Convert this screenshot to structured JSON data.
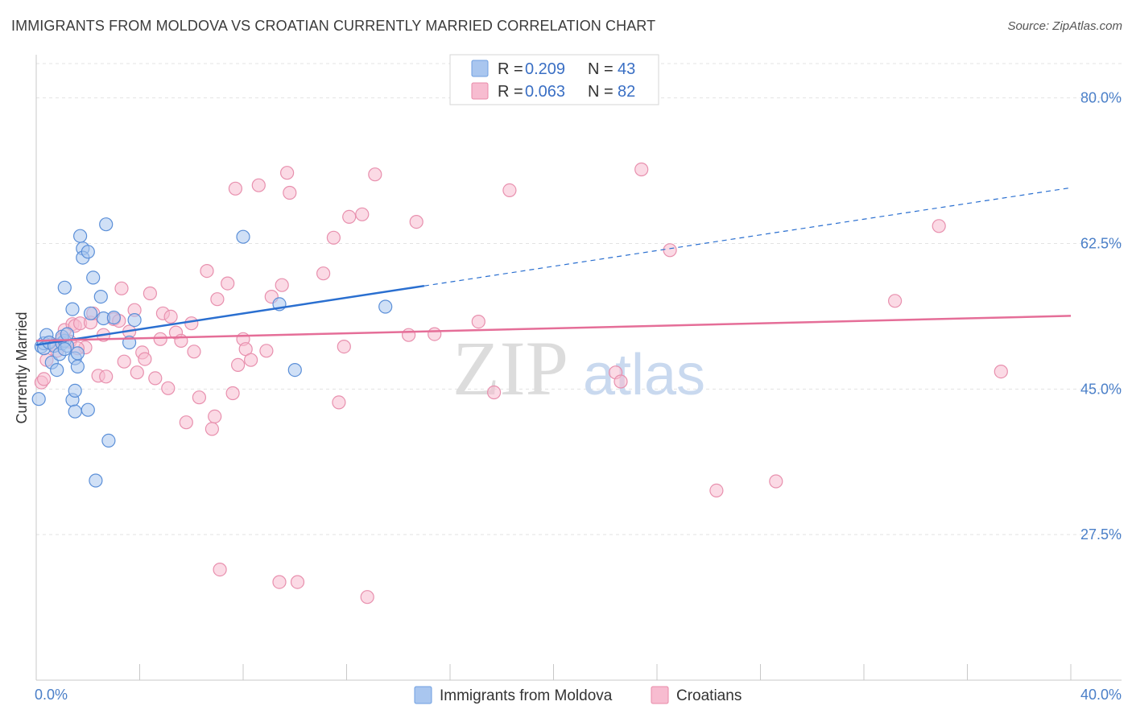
{
  "title": "IMMIGRANTS FROM MOLDOVA VS CROATIAN CURRENTLY MARRIED CORRELATION CHART",
  "source": "Source: ZipAtlas.com",
  "watermark": {
    "zip": "ZIP",
    "atlas": "atlas"
  },
  "legend": {
    "rows": [
      {
        "r_label": "R = ",
        "r_value": "0.209",
        "n_label": "N = ",
        "n_value": "43",
        "color": "#a9c6ef",
        "stroke": "#6f9fe0"
      },
      {
        "r_label": "R = ",
        "r_value": "0.063",
        "n_label": "N = ",
        "n_value": "82",
        "color": "#f7bcd0",
        "stroke": "#e88aa8"
      }
    ]
  },
  "chart_data": {
    "type": "scatter",
    "title": "IMMIGRANTS FROM MOLDOVA VS CROATIAN CURRENTLY MARRIED CORRELATION CHART",
    "xlabel": "",
    "ylabel": "Currently Married",
    "xlim": [
      0,
      40
    ],
    "ylim": [
      10,
      85
    ],
    "x_tick_labels": [
      "0.0%",
      "40.0%"
    ],
    "y_ticks": [
      27.5,
      45.0,
      62.5,
      80.0
    ],
    "y_tick_labels": [
      "27.5%",
      "45.0%",
      "62.5%",
      "80.0%"
    ],
    "grid": true,
    "legend_position": "top-center",
    "series": [
      {
        "name": "Immigrants from Moldova",
        "color": "#a9c6ef",
        "stroke": "#5b8fd8",
        "trend_color": "#2a6fd0",
        "trend": {
          "x0": 0,
          "y0": 50.3,
          "x1": 15.0,
          "y1": 57.4,
          "dash_to_x": 40,
          "dash_to_y": 69.2
        },
        "points": [
          [
            0.1,
            43.8
          ],
          [
            0.2,
            50.1
          ],
          [
            0.3,
            50.5
          ],
          [
            0.3,
            49.9
          ],
          [
            0.4,
            51.5
          ],
          [
            0.5,
            50.6
          ],
          [
            0.6,
            48.2
          ],
          [
            0.7,
            50.2
          ],
          [
            0.8,
            47.3
          ],
          [
            0.9,
            49.2
          ],
          [
            1.0,
            50.5
          ],
          [
            1.1,
            50.8
          ],
          [
            1.2,
            50.2
          ],
          [
            1.0,
            51.3
          ],
          [
            1.1,
            49.8
          ],
          [
            1.2,
            51.6
          ],
          [
            1.1,
            57.2
          ],
          [
            1.4,
            43.7
          ],
          [
            1.4,
            54.6
          ],
          [
            1.5,
            42.3
          ],
          [
            1.5,
            48.7
          ],
          [
            1.6,
            49.3
          ],
          [
            1.6,
            47.7
          ],
          [
            1.7,
            63.4
          ],
          [
            1.8,
            61.9
          ],
          [
            1.8,
            60.8
          ],
          [
            2.0,
            42.5
          ],
          [
            2.0,
            61.5
          ],
          [
            2.1,
            54.1
          ],
          [
            2.2,
            58.4
          ],
          [
            2.3,
            34.0
          ],
          [
            2.5,
            56.1
          ],
          [
            2.6,
            53.5
          ],
          [
            2.7,
            64.8
          ],
          [
            2.8,
            38.8
          ],
          [
            3.0,
            53.6
          ],
          [
            3.6,
            50.6
          ],
          [
            3.8,
            53.3
          ],
          [
            8.0,
            63.3
          ],
          [
            9.4,
            55.2
          ],
          [
            10.0,
            47.3
          ],
          [
            13.5,
            54.9
          ],
          [
            1.5,
            44.8
          ]
        ]
      },
      {
        "name": "Croatians",
        "color": "#f7bcd0",
        "stroke": "#e890ae",
        "trend_color": "#e56e98",
        "trend": {
          "x0": 0,
          "y0": 50.8,
          "x1": 40,
          "y1": 53.8
        },
        "points": [
          [
            0.2,
            45.8
          ],
          [
            0.3,
            46.2
          ],
          [
            0.4,
            48.5
          ],
          [
            0.6,
            50.4
          ],
          [
            0.8,
            49.6
          ],
          [
            1.0,
            51.0
          ],
          [
            1.1,
            52.1
          ],
          [
            1.3,
            50.7
          ],
          [
            1.4,
            52.8
          ],
          [
            1.5,
            52.6
          ],
          [
            1.7,
            52.9
          ],
          [
            1.9,
            50.0
          ],
          [
            2.1,
            53.0
          ],
          [
            2.2,
            54.1
          ],
          [
            2.4,
            46.6
          ],
          [
            2.6,
            51.5
          ],
          [
            2.7,
            46.5
          ],
          [
            3.0,
            53.4
          ],
          [
            3.2,
            53.2
          ],
          [
            3.3,
            57.1
          ],
          [
            3.4,
            48.3
          ],
          [
            3.6,
            51.9
          ],
          [
            3.8,
            54.5
          ],
          [
            3.9,
            47.0
          ],
          [
            4.1,
            49.4
          ],
          [
            4.2,
            48.6
          ],
          [
            4.4,
            56.5
          ],
          [
            4.6,
            46.3
          ],
          [
            4.8,
            51.0
          ],
          [
            4.9,
            54.1
          ],
          [
            5.1,
            45.1
          ],
          [
            5.2,
            53.7
          ],
          [
            5.4,
            51.8
          ],
          [
            5.6,
            50.8
          ],
          [
            5.8,
            41.0
          ],
          [
            6.0,
            52.9
          ],
          [
            6.1,
            49.5
          ],
          [
            6.3,
            44.0
          ],
          [
            6.6,
            59.2
          ],
          [
            6.8,
            40.2
          ],
          [
            6.9,
            41.7
          ],
          [
            7.0,
            55.8
          ],
          [
            7.1,
            23.3
          ],
          [
            7.4,
            57.7
          ],
          [
            7.6,
            44.5
          ],
          [
            7.7,
            69.1
          ],
          [
            7.8,
            47.9
          ],
          [
            8.0,
            51.0
          ],
          [
            8.1,
            49.8
          ],
          [
            8.3,
            48.5
          ],
          [
            8.6,
            69.5
          ],
          [
            8.9,
            49.6
          ],
          [
            9.1,
            56.1
          ],
          [
            9.4,
            21.8
          ],
          [
            9.5,
            57.5
          ],
          [
            9.7,
            71.0
          ],
          [
            9.8,
            68.6
          ],
          [
            10.1,
            21.8
          ],
          [
            11.1,
            58.9
          ],
          [
            11.5,
            63.2
          ],
          [
            11.7,
            43.4
          ],
          [
            11.9,
            50.1
          ],
          [
            12.1,
            65.7
          ],
          [
            12.6,
            66.0
          ],
          [
            12.8,
            20.0
          ],
          [
            13.1,
            70.8
          ],
          [
            14.4,
            51.5
          ],
          [
            14.7,
            65.1
          ],
          [
            15.4,
            51.6
          ],
          [
            17.1,
            53.1
          ],
          [
            17.7,
            44.6
          ],
          [
            18.3,
            68.9
          ],
          [
            22.4,
            47.0
          ],
          [
            22.6,
            45.9
          ],
          [
            23.4,
            71.4
          ],
          [
            24.5,
            61.7
          ],
          [
            26.3,
            32.8
          ],
          [
            28.6,
            33.9
          ],
          [
            33.2,
            55.6
          ],
          [
            34.9,
            64.6
          ],
          [
            37.3,
            47.1
          ],
          [
            1.6,
            49.9
          ]
        ]
      }
    ]
  }
}
